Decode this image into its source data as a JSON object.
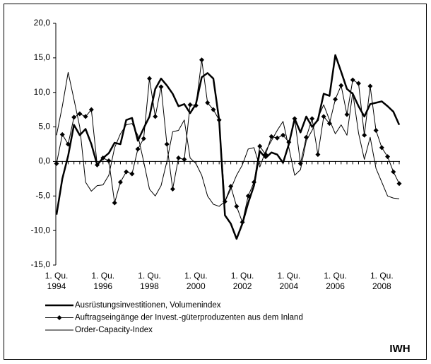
{
  "chart_data": {
    "type": "line",
    "categories": [
      "1. Qu. 1994",
      null,
      null,
      null,
      null,
      null,
      null,
      null,
      "1. Qu. 1996",
      null,
      null,
      null,
      null,
      null,
      null,
      null,
      "1. Qu. 1998",
      null,
      null,
      null,
      null,
      null,
      null,
      null,
      "1. Qu. 2000",
      null,
      null,
      null,
      null,
      null,
      null,
      null,
      "1. Qu. 2002",
      null,
      null,
      null,
      null,
      null,
      null,
      null,
      "1. Qu. 2004",
      null,
      null,
      null,
      null,
      null,
      null,
      null,
      "1. Qu. 2006",
      null,
      null,
      null,
      null,
      null,
      null,
      null,
      "1. Qu. 2008",
      null,
      null,
      null
    ],
    "series": [
      {
        "name": "Ausrüstungsinvestitionen, Volumenindex",
        "color": "#000000",
        "width": 2.5,
        "values": [
          -7.7,
          -2.5,
          0.8,
          5.3,
          3.8,
          4.7,
          2.5,
          -0.5,
          0.5,
          1.2,
          2.7,
          2.5,
          6.0,
          6.3,
          3.0,
          4.8,
          6.5,
          10.5,
          12.0,
          11.0,
          9.8,
          8.0,
          8.3,
          7.0,
          8.3,
          12.2,
          12.8,
          12.0,
          6.0,
          -7.8,
          -9.0,
          -11.2,
          -9.0,
          -6.0,
          -3.5,
          1.5,
          0.5,
          1.3,
          1.0,
          -0.2,
          2.5,
          6.2,
          4.2,
          6.5,
          5.0,
          6.0,
          9.8,
          9.5,
          15.4,
          13.0,
          10.5,
          9.8,
          8.0,
          6.5,
          8.3,
          8.5,
          8.7,
          8.0,
          7.2,
          5.3
        ]
      },
      {
        "name": "Auftragseingänge der Invest.-güterproduzenten aus dem Inland",
        "color": "#000000",
        "width": 1,
        "marker": "diamond",
        "values": [
          -0.3,
          3.9,
          2.5,
          6.4,
          6.9,
          6.5,
          7.5,
          -0.5,
          0.5,
          0.1,
          -6.0,
          -3.0,
          -1.5,
          -1.8,
          1.8,
          3.3,
          12.0,
          6.5,
          10.8,
          2.5,
          -4.0,
          0.5,
          0.3,
          8.2,
          8.1,
          14.7,
          8.5,
          7.5,
          6.0,
          -5.8,
          -3.6,
          -6.5,
          -8.8,
          -5.0,
          -3.0,
          2.2,
          1.0,
          3.6,
          3.4,
          3.8,
          2.8,
          6.2,
          -0.3,
          3.5,
          6.2,
          1.0,
          6.5,
          5.5,
          9.0,
          11.0,
          6.8,
          11.8,
          11.3,
          3.8,
          10.9,
          4.5,
          2.0,
          0.7,
          -1.5,
          -3.2
        ]
      },
      {
        "name": "Order-Capacity-Index",
        "color": "#000000",
        "width": 1,
        "values": [
          3.8,
          8.0,
          12.9,
          9.0,
          5.0,
          -3.0,
          -4.3,
          -3.5,
          -3.4,
          -2.0,
          2.0,
          4.0,
          5.3,
          5.5,
          3.8,
          0.0,
          -4.0,
          -5.0,
          -3.5,
          0.0,
          4.3,
          4.5,
          6.0,
          0.5,
          -0.3,
          -2.0,
          -5.0,
          -6.2,
          -6.5,
          -5.8,
          -4.0,
          -2.0,
          -0.5,
          1.8,
          2.0,
          -0.8,
          1.5,
          3.0,
          4.5,
          5.8,
          2.0,
          -2.0,
          -1.2,
          3.0,
          4.5,
          6.3,
          8.2,
          6.0,
          4.0,
          5.3,
          3.8,
          10.0,
          4.1,
          0.3,
          3.5,
          -1.0,
          -3.0,
          -5.0,
          -5.3,
          -5.4
        ]
      }
    ],
    "ylim": [
      -15,
      20
    ],
    "yticks": [
      {
        "value": -15,
        "label": "-15,0"
      },
      {
        "value": -10,
        "label": "-10,0"
      },
      {
        "value": -5,
        "label": "-5,0"
      },
      {
        "value": 0,
        "label": "0,0"
      },
      {
        "value": 5,
        "label": "5,0"
      },
      {
        "value": 10,
        "label": "10,0"
      },
      {
        "value": 15,
        "label": "15,0"
      },
      {
        "value": 20,
        "label": "20,0"
      }
    ],
    "grid": false,
    "source": "IWH"
  }
}
